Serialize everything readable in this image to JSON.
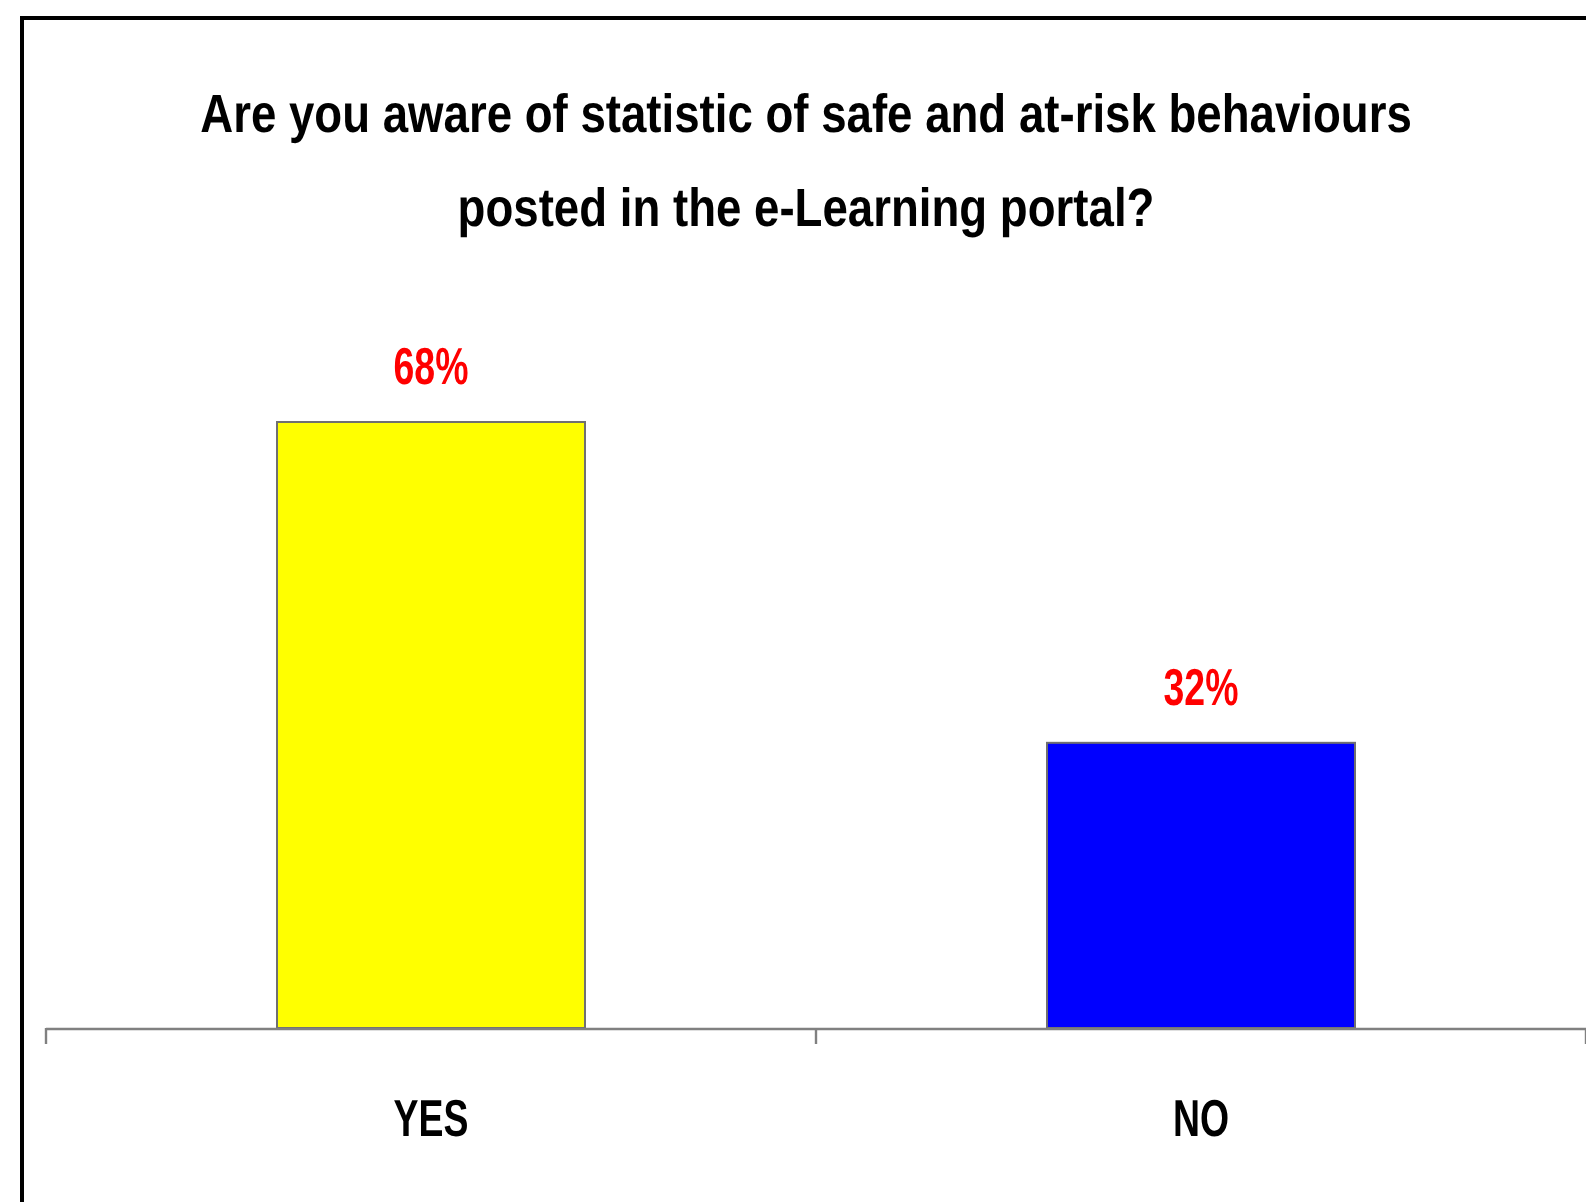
{
  "chart_data": {
    "type": "bar",
    "title": "Are you aware of statistic of safe and at-risk behaviours\nposted in the e-Learning portal?",
    "categories": [
      "YES",
      "NO"
    ],
    "values": [
      68,
      32
    ],
    "colors": [
      "#ffff00",
      "#0000ff"
    ],
    "value_labels": [
      "68%",
      "32%"
    ]
  }
}
